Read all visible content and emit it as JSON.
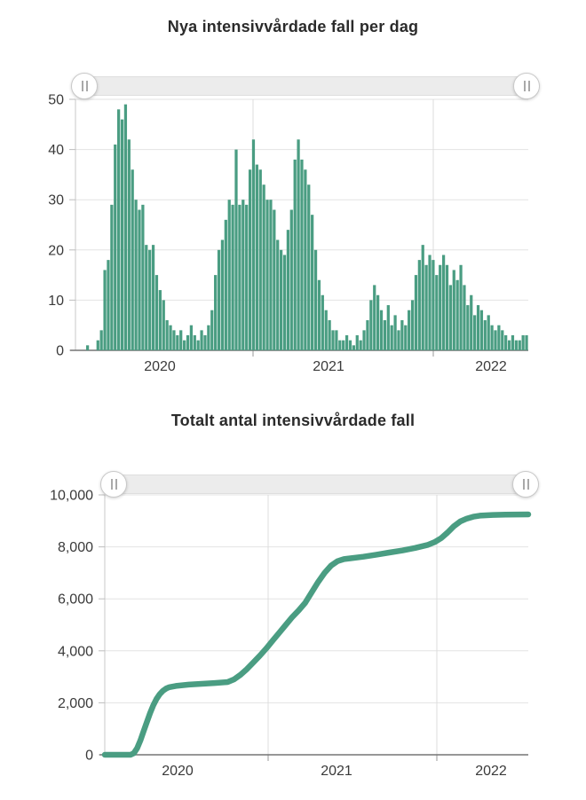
{
  "page": {
    "background_color": "#ffffff",
    "accent_color": "#4a9d82"
  },
  "icons": {
    "slider_handle": "drag-grip-icon (double vertical bar)"
  },
  "sliders": {
    "daily_chart_range_selector": {
      "left_position": "start of range",
      "right_position": "end of range"
    },
    "total_chart_range_selector": {
      "left_position": "start of range",
      "right_position": "end of range"
    }
  },
  "chart_data": [
    {
      "type": "bar",
      "title": "Nya intensivvårdade fall per dag",
      "xlabel": "",
      "ylabel": "",
      "ylim": [
        0,
        50
      ],
      "grid": true,
      "legend": "none",
      "bar_color": "#4a9d82",
      "y_tick_labels": [
        "0",
        "10",
        "20",
        "30",
        "40",
        "50"
      ],
      "x_tick_labels": [
        "2020",
        "2021",
        "2022"
      ],
      "x_axis_note": "weekly bins starting 2020-01, year gridlines at Jan 2021 and Jan 2022",
      "values": [
        0,
        0,
        0,
        1,
        0,
        0,
        2,
        4,
        16,
        18,
        29,
        41,
        48,
        46,
        49,
        42,
        36,
        30,
        28,
        29,
        21,
        20,
        21,
        15,
        12,
        10,
        6,
        5,
        4,
        3,
        4,
        2,
        3,
        5,
        3,
        2,
        4,
        3,
        5,
        8,
        15,
        20,
        22,
        26,
        30,
        29,
        40,
        29,
        30,
        29,
        36,
        42,
        37,
        36,
        33,
        30,
        30,
        28,
        22,
        20,
        19,
        24,
        28,
        38,
        42,
        38,
        36,
        33,
        27,
        20,
        14,
        11,
        8,
        6,
        4,
        4,
        2,
        2,
        3,
        2,
        1,
        3,
        2,
        4,
        6,
        10,
        13,
        11,
        8,
        6,
        9,
        5,
        7,
        4,
        6,
        5,
        8,
        10,
        15,
        18,
        21,
        17,
        19,
        18,
        15,
        17,
        19,
        17,
        13,
        16,
        14,
        17,
        13,
        9,
        11,
        7,
        9,
        8,
        6,
        7,
        5,
        4,
        5,
        4,
        3,
        2,
        3,
        2,
        2,
        3,
        3
      ],
      "year_gridline_weeks": [
        52,
        104
      ]
    },
    {
      "type": "line",
      "title": "Totalt antal intensivvårdade fall",
      "xlabel": "",
      "ylabel": "",
      "ylim": [
        0,
        10000
      ],
      "grid": true,
      "legend": "none",
      "line_color": "#4a9d82",
      "y_tick_labels": [
        "0",
        "2,000",
        "4,000",
        "6,000",
        "8,000",
        "10,000"
      ],
      "x_tick_labels": [
        "2020",
        "2021",
        "2022"
      ],
      "x_axis_note": "cumulative total, weekly x index, year gridlines at Jan 2021 and Jan 2022",
      "points": [
        [
          0,
          0
        ],
        [
          4,
          0
        ],
        [
          8,
          0
        ],
        [
          9,
          60
        ],
        [
          10,
          250
        ],
        [
          11,
          550
        ],
        [
          12,
          900
        ],
        [
          13,
          1250
        ],
        [
          14,
          1600
        ],
        [
          15,
          1900
        ],
        [
          16,
          2150
        ],
        [
          17,
          2330
        ],
        [
          18,
          2460
        ],
        [
          19,
          2550
        ],
        [
          20,
          2600
        ],
        [
          22,
          2650
        ],
        [
          26,
          2700
        ],
        [
          30,
          2730
        ],
        [
          34,
          2760
        ],
        [
          38,
          2800
        ],
        [
          40,
          2900
        ],
        [
          42,
          3080
        ],
        [
          44,
          3300
        ],
        [
          46,
          3560
        ],
        [
          48,
          3820
        ],
        [
          50,
          4100
        ],
        [
          52,
          4400
        ],
        [
          54,
          4700
        ],
        [
          56,
          5000
        ],
        [
          58,
          5300
        ],
        [
          60,
          5560
        ],
        [
          62,
          5850
        ],
        [
          64,
          6250
        ],
        [
          66,
          6650
        ],
        [
          68,
          7000
        ],
        [
          70,
          7280
        ],
        [
          72,
          7450
        ],
        [
          74,
          7530
        ],
        [
          76,
          7560
        ],
        [
          80,
          7620
        ],
        [
          84,
          7700
        ],
        [
          88,
          7780
        ],
        [
          92,
          7860
        ],
        [
          96,
          7960
        ],
        [
          100,
          8080
        ],
        [
          102,
          8180
        ],
        [
          104,
          8330
        ],
        [
          106,
          8550
        ],
        [
          108,
          8800
        ],
        [
          110,
          8980
        ],
        [
          112,
          9090
        ],
        [
          114,
          9160
        ],
        [
          116,
          9200
        ],
        [
          120,
          9230
        ],
        [
          124,
          9240
        ],
        [
          131,
          9250
        ]
      ],
      "year_gridline_weeks": [
        52,
        104
      ]
    }
  ]
}
